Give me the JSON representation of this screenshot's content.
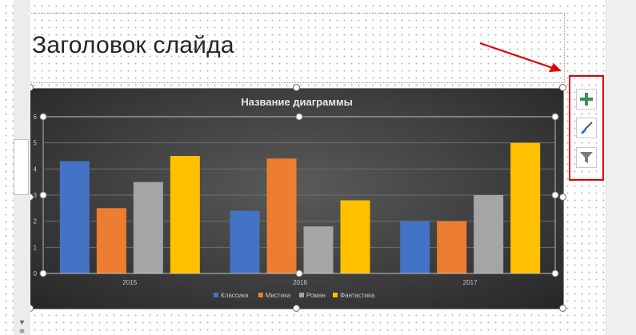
{
  "slide": {
    "title": "Заголовок слайда"
  },
  "chart_data": {
    "type": "bar",
    "title": "Название диаграммы",
    "categories": [
      "2015",
      "2016",
      "2017"
    ],
    "series": [
      {
        "name": "Классика",
        "color": "#4472c4",
        "values": [
          4.3,
          2.4,
          2.0
        ]
      },
      {
        "name": "Мистика",
        "color": "#ed7d31",
        "values": [
          2.5,
          4.4,
          2.0
        ]
      },
      {
        "name": "Роман",
        "color": "#a5a5a5",
        "values": [
          3.5,
          1.8,
          3.0
        ]
      },
      {
        "name": "Фантастика",
        "color": "#ffc000",
        "values": [
          4.5,
          2.8,
          5.0
        ]
      }
    ],
    "ylim": [
      0,
      6
    ],
    "yticks": [
      "0",
      "1",
      "2",
      "3",
      "4",
      "5",
      "6"
    ],
    "grid": true,
    "legend": "bottom"
  },
  "chart_tools": [
    {
      "name": "chart-elements",
      "icon": "plus-icon",
      "color": "#3c8f5a"
    },
    {
      "name": "chart-styles",
      "icon": "paintbrush-icon",
      "color": "#2f6fbd"
    },
    {
      "name": "chart-filters",
      "icon": "filter-icon",
      "color": "#6f6f6f"
    }
  ],
  "annotation": {
    "color": "#e00000"
  }
}
